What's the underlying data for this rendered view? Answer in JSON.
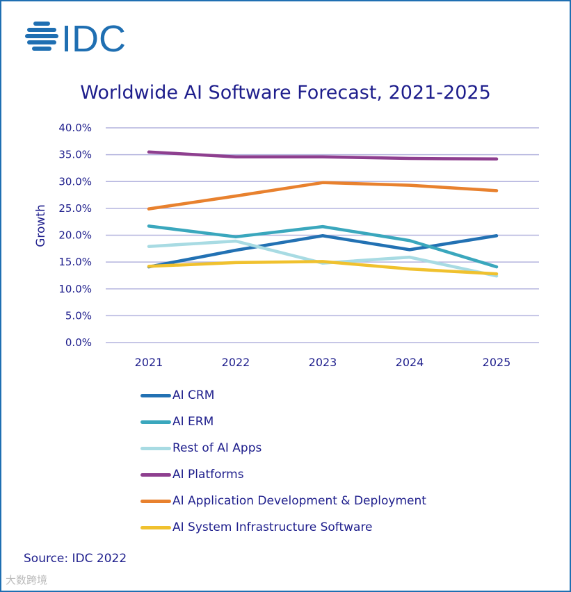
{
  "logo": {
    "text": "IDC",
    "color": "#1f6fb2"
  },
  "source": "Source: IDC 2022",
  "watermark": "大数跨境",
  "chart_data": {
    "type": "line",
    "title": "Worldwide AI Software Forecast, 2021-2025",
    "xlabel": "",
    "ylabel": "Growth",
    "ylim": [
      0,
      40
    ],
    "yticks": [
      "0.0%",
      "5.0%",
      "10.0%",
      "15.0%",
      "20.0%",
      "25.0%",
      "30.0%",
      "35.0%",
      "40.0%"
    ],
    "ytick_values": [
      0,
      5,
      10,
      15,
      20,
      25,
      30,
      35,
      40
    ],
    "categories": [
      "2021",
      "2022",
      "2023",
      "2024",
      "2025"
    ],
    "grid": true,
    "legend_position": "bottom",
    "series": [
      {
        "name": "AI CRM",
        "color": "#2271b3",
        "values": [
          14.1,
          17.2,
          19.9,
          17.3,
          19.9
        ]
      },
      {
        "name": "AI ERM",
        "color": "#3aa7bd",
        "values": [
          21.7,
          19.7,
          21.6,
          19.0,
          14.1
        ]
      },
      {
        "name": "Rest of AI Apps",
        "color": "#a8dbe3",
        "values": [
          17.9,
          18.9,
          14.8,
          15.9,
          12.4
        ]
      },
      {
        "name": "AI Platforms",
        "color": "#8e3f8f",
        "values": [
          35.5,
          34.6,
          34.6,
          34.3,
          34.2
        ]
      },
      {
        "name": "AI Application Development & Deployment",
        "color": "#e8812e",
        "values": [
          24.9,
          27.3,
          29.8,
          29.3,
          28.3
        ]
      },
      {
        "name": "AI System Infrastructure Software",
        "color": "#f0c12e",
        "values": [
          14.2,
          14.9,
          15.1,
          13.7,
          12.8
        ]
      }
    ]
  }
}
